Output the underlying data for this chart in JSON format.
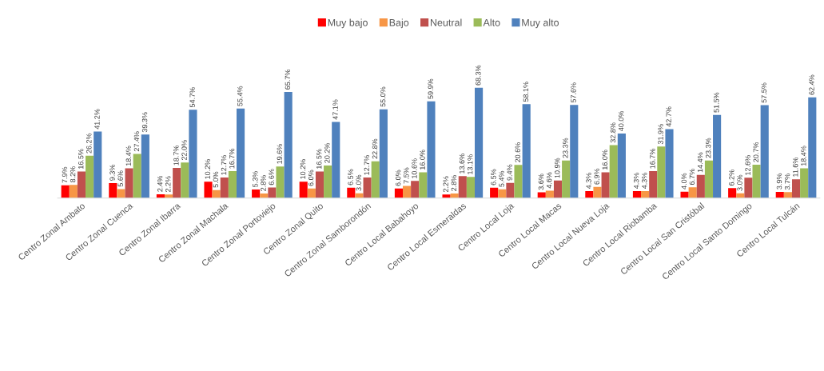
{
  "chart_data": {
    "type": "bar",
    "categories": [
      "Centro Zonal Ambato",
      "Centro Zonal Cuenca",
      "Centro Zonal Ibarra",
      "Centro Zonal Machala",
      "Centro Zonal Portoviejo",
      "Centro Zonal Quito",
      "Centro Zonal Samborondón",
      "Centro Local Babahoyo",
      "Centro Local Esmeraldas",
      "Centro Local Loja",
      "Centro Local Macas",
      "Centro Local Nueva Loja",
      "Centro Local Riobamba",
      "Centro Local San Cristóbal",
      "Centro Local Santo Domingo",
      "Centro Local Tulcán"
    ],
    "series": [
      {
        "name": "Muy bajo",
        "color": "#ff0000",
        "values": [
          7.9,
          9.3,
          2.4,
          10.2,
          5.3,
          10.2,
          6.5,
          6.0,
          2.2,
          6.5,
          3.6,
          4.3,
          4.3,
          4.0,
          6.2,
          3.9
        ],
        "value_labels": [
          "7.9%",
          "9.3%",
          "2.4%",
          "10.2%",
          "5.3%",
          "10.2%",
          "6.5%",
          "6.0%",
          "2.2%",
          "6.5%",
          "3.6%",
          "4.3%",
          "4.3%",
          "4.0%",
          "6.2%",
          "3.9%"
        ]
      },
      {
        "name": "Bajo",
        "color": "#f79646",
        "values": [
          8.2,
          5.6,
          2.2,
          5.0,
          2.8,
          6.0,
          3.0,
          7.5,
          2.8,
          5.4,
          4.6,
          6.9,
          4.3,
          6.7,
          3.0,
          3.7
        ],
        "value_labels": [
          "8.2%",
          "5.6%",
          "2.2%",
          "5.0%",
          "2.8%",
          "6.0%",
          "3.0%",
          "7.5%",
          "2.8%",
          "5.4%",
          "4.6%",
          "6.9%",
          "4.3%",
          "6.7%",
          "3.0%",
          "3.7%"
        ]
      },
      {
        "name": "Neutral",
        "color": "#c0504d",
        "values": [
          16.5,
          18.4,
          18.7,
          12.7,
          6.6,
          16.5,
          12.7,
          10.6,
          13.6,
          9.4,
          10.9,
          16.0,
          16.7,
          14.4,
          12.6,
          11.6
        ],
        "value_labels": [
          "16.5%",
          "18.4%",
          "18.7%",
          "12.7%",
          "6.6%",
          "16.5%",
          "12.7%",
          "10.6%",
          "13.6%",
          "9.4%",
          "10.9%",
          "16.0%",
          "16.7%",
          "14.4%",
          "12.6%",
          "11.6%"
        ]
      },
      {
        "name": "Alto",
        "color": "#9bbb59",
        "values": [
          26.2,
          27.4,
          22.0,
          16.7,
          19.6,
          20.2,
          22.8,
          16.0,
          13.1,
          20.6,
          23.3,
          32.8,
          31.9,
          23.3,
          20.7,
          18.4
        ],
        "value_labels": [
          "26.2%",
          "27.4%",
          "22.0%",
          "16.7%",
          "19.6%",
          "20.2%",
          "22.8%",
          "16.0%",
          "13.1%",
          "20.6%",
          "23.3%",
          "32.8%",
          "31.9%",
          "23.3%",
          "20.7%",
          "18.4%"
        ]
      },
      {
        "name": "Muy alto",
        "color": "#4f81bd",
        "values": [
          41.2,
          39.3,
          54.7,
          55.4,
          65.7,
          47.1,
          55.0,
          59.9,
          68.3,
          58.1,
          57.6,
          40.0,
          42.7,
          51.5,
          57.5,
          62.4
        ],
        "value_labels": [
          "41.2%",
          "39.3%",
          "54.7%",
          "55.4%",
          "65.7%",
          "47.1%",
          "55.0%",
          "59.9%",
          "68.3%",
          "58.1%",
          "57.6%",
          "40.0%",
          "42.7%",
          "51.5%",
          "57.5%",
          "62.4%"
        ]
      }
    ],
    "legend": "top",
    "grid": false
  }
}
